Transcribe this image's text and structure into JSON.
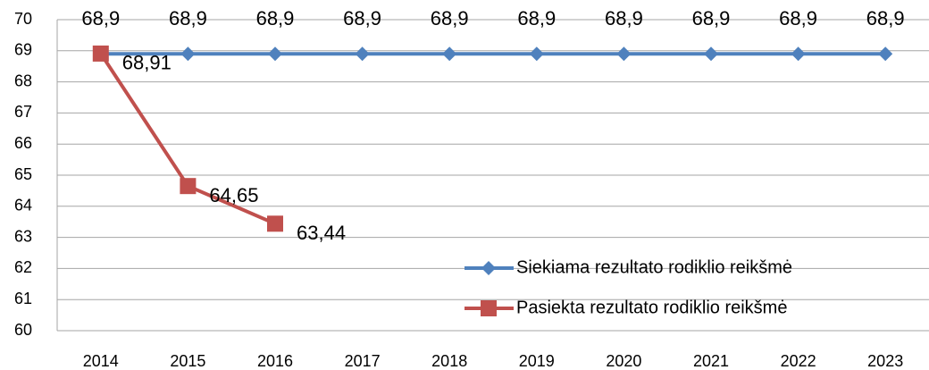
{
  "chart_data": {
    "type": "line",
    "categories": [
      "2014",
      "2015",
      "2016",
      "2017",
      "2018",
      "2019",
      "2020",
      "2021",
      "2022",
      "2023"
    ],
    "series": [
      {
        "name": "Siekiama rezultato rodiklio reikšmė",
        "color": "#4f81bd",
        "marker": "diamond",
        "values": [
          68.9,
          68.9,
          68.9,
          68.9,
          68.9,
          68.9,
          68.9,
          68.9,
          68.9,
          68.9
        ],
        "value_labels": [
          "68,9",
          "68,9",
          "68,9",
          "68,9",
          "68,9",
          "68,9",
          "68,9",
          "68,9",
          "68,9",
          "68,9"
        ]
      },
      {
        "name": "Pasiekta rezultato rodiklio reikšmė",
        "color": "#c0504d",
        "marker": "square",
        "values": [
          68.91,
          64.65,
          63.44,
          null,
          null,
          null,
          null,
          null,
          null,
          null
        ],
        "value_labels": [
          "68,91",
          "64,65",
          "63,44",
          null,
          null,
          null,
          null,
          null,
          null,
          null
        ]
      }
    ],
    "ylim": [
      60,
      70
    ],
    "yticks": [
      60,
      61,
      62,
      63,
      64,
      65,
      66,
      67,
      68,
      69,
      70
    ],
    "grid": true,
    "legend": "lower right"
  }
}
